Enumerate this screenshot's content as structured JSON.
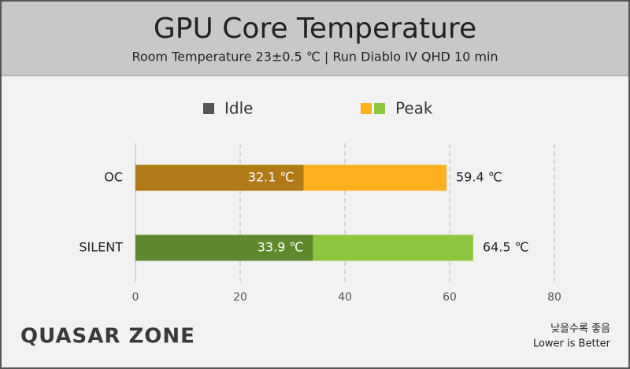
{
  "chart_data": {
    "type": "bar",
    "orientation": "horizontal",
    "title": "GPU Core Temperature",
    "subtitle": "Room Temperature 23±0.5 ℃  |  Run Diablo IV QHD 10 min",
    "categories": [
      "OC",
      "SILENT"
    ],
    "series": [
      {
        "name": "Peak",
        "colors": [
          "#ffb020",
          "#8dc63f"
        ],
        "legend_colors": [
          "#ffb020",
          "#8dc63f"
        ],
        "values": [
          59.4,
          64.5
        ],
        "value_labels": [
          "59.4 ℃",
          "64.5 ℃"
        ]
      },
      {
        "name": "Idle",
        "colors": [
          "#b07a17",
          "#5e8a2d"
        ],
        "legend_colors": [
          "#555555"
        ],
        "values": [
          32.1,
          33.9
        ],
        "value_labels": [
          "32.1 ℃",
          "33.9 ℃"
        ]
      }
    ],
    "xlim": [
      0,
      80
    ],
    "xticks": [
      0,
      20,
      40,
      60,
      80
    ],
    "grid": true,
    "watermark": "QUASAR ZONE",
    "note": [
      "낮을수록 좋음",
      "Lower is Better"
    ]
  }
}
